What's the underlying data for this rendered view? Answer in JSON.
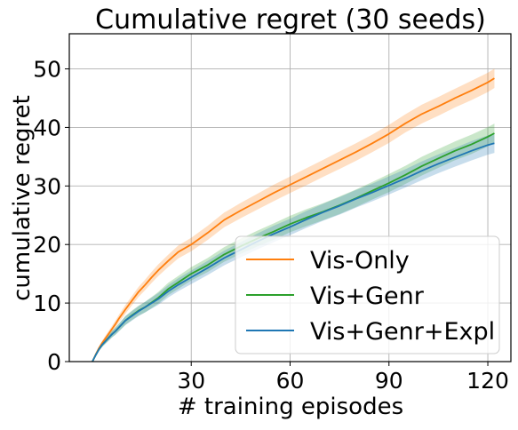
{
  "chart_data": {
    "type": "line",
    "title": "Cumulative regret (30 seeds)",
    "xlabel": "# training episodes",
    "ylabel": "cumulative regret",
    "xlim": [
      -7,
      127
    ],
    "ylim": [
      0,
      56
    ],
    "xticks": [
      30,
      60,
      90,
      120
    ],
    "yticks": [
      0,
      10,
      20,
      30,
      40,
      50
    ],
    "grid": true,
    "legend": {
      "placement": "lower-right"
    },
    "x": [
      0,
      1,
      2,
      3,
      4,
      5,
      6,
      7,
      8,
      9,
      10,
      12,
      14,
      16,
      18,
      20,
      23,
      26,
      30,
      35,
      40,
      45,
      50,
      55,
      60,
      65,
      70,
      75,
      80,
      85,
      90,
      95,
      100,
      105,
      110,
      115,
      120,
      122
    ],
    "series": [
      {
        "name": "Vis-Only",
        "color": "#ff7f0e",
        "values": [
          0.0,
          1.2,
          2.3,
          3.2,
          4.0,
          4.8,
          5.6,
          6.4,
          7.3,
          8.1,
          8.9,
          10.4,
          11.9,
          13.1,
          14.4,
          15.6,
          17.2,
          18.7,
          20.0,
          22.0,
          24.2,
          25.8,
          27.3,
          28.8,
          30.2,
          31.6,
          33.0,
          34.4,
          35.8,
          37.3,
          38.9,
          40.7,
          42.3,
          43.6,
          45.0,
          46.3,
          47.7,
          48.4
        ],
        "ci": [
          0.05,
          0.2,
          0.3,
          0.4,
          0.45,
          0.5,
          0.55,
          0.6,
          0.65,
          0.7,
          0.75,
          0.8,
          0.85,
          0.9,
          0.95,
          1.0,
          1.05,
          1.1,
          1.15,
          1.2,
          1.25,
          1.3,
          1.35,
          1.4,
          1.4,
          1.45,
          1.45,
          1.5,
          1.5,
          1.5,
          1.55,
          1.55,
          1.6,
          1.6,
          1.6,
          1.65,
          1.65,
          1.65
        ]
      },
      {
        "name": "Vis+Genr",
        "color": "#2ca02c",
        "values": [
          0.0,
          1.1,
          2.1,
          2.9,
          3.5,
          4.1,
          4.7,
          5.2,
          5.8,
          6.4,
          7.0,
          7.9,
          8.7,
          9.3,
          10.1,
          10.9,
          12.4,
          13.5,
          15.0,
          16.5,
          18.3,
          19.7,
          21.0,
          22.2,
          23.5,
          24.6,
          25.6,
          26.7,
          27.9,
          29.2,
          30.5,
          31.9,
          33.4,
          34.7,
          36.0,
          37.1,
          38.4,
          39.0
        ],
        "ci": [
          0.05,
          0.2,
          0.3,
          0.4,
          0.45,
          0.5,
          0.55,
          0.6,
          0.65,
          0.7,
          0.75,
          0.8,
          0.85,
          0.9,
          0.95,
          1.0,
          1.05,
          1.1,
          1.15,
          1.2,
          1.25,
          1.3,
          1.35,
          1.4,
          1.4,
          1.45,
          1.45,
          1.5,
          1.5,
          1.5,
          1.55,
          1.55,
          1.6,
          1.6,
          1.6,
          1.65,
          1.65,
          1.65
        ]
      },
      {
        "name": "Vis+Genr+Expl",
        "color": "#1f77b4",
        "values": [
          0.0,
          1.1,
          2.1,
          2.9,
          3.5,
          4.1,
          4.7,
          5.2,
          5.8,
          6.4,
          7.0,
          7.8,
          8.6,
          9.3,
          10.0,
          10.7,
          12.0,
          13.1,
          14.4,
          16.0,
          17.7,
          19.1,
          20.5,
          21.8,
          23.0,
          24.3,
          25.5,
          26.6,
          27.8,
          28.9,
          30.1,
          31.3,
          32.6,
          33.8,
          34.9,
          36.0,
          37.0,
          37.3
        ],
        "ci": [
          0.05,
          0.2,
          0.3,
          0.4,
          0.45,
          0.5,
          0.55,
          0.6,
          0.65,
          0.7,
          0.75,
          0.8,
          0.85,
          0.9,
          0.95,
          1.0,
          1.05,
          1.1,
          1.15,
          1.2,
          1.25,
          1.3,
          1.35,
          1.4,
          1.4,
          1.45,
          1.45,
          1.5,
          1.5,
          1.5,
          1.55,
          1.55,
          1.6,
          1.6,
          1.6,
          1.65,
          1.65,
          1.65
        ]
      }
    ]
  }
}
